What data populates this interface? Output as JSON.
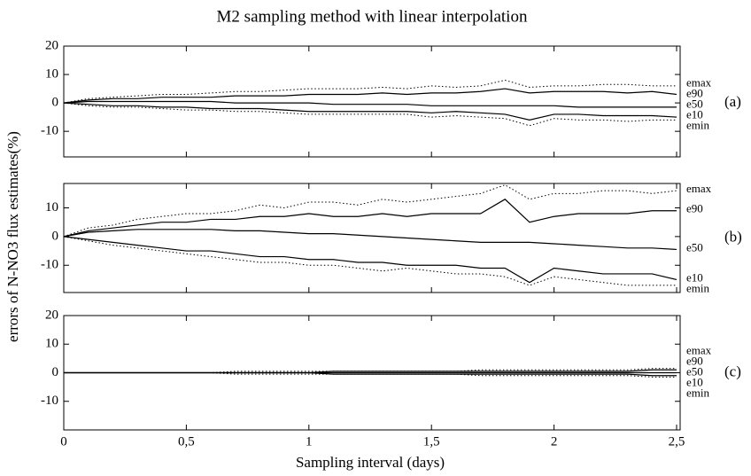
{
  "chart_data": [
    {
      "type": "line",
      "title": "M2 sampling method with linear interpolation",
      "label": "(a)",
      "x": [
        0,
        0.1,
        0.2,
        0.3,
        0.4,
        0.5,
        0.6,
        0.7,
        0.8,
        0.9,
        1,
        1.1,
        1.2,
        1.3,
        1.4,
        1.5,
        1.6,
        1.7,
        1.8,
        1.9,
        2,
        2.1,
        2.2,
        2.3,
        2.4,
        2.5
      ],
      "ylim": [
        -19,
        20
      ],
      "yticks": [
        -10,
        0,
        10,
        20
      ],
      "series": [
        {
          "name": "emax",
          "color": "#000000",
          "style": "dotted",
          "values": [
            0,
            1.5,
            2,
            2.5,
            3,
            3,
            3.5,
            4,
            4,
            4.5,
            5,
            5,
            5,
            5.5,
            5,
            6,
            5.5,
            6,
            8,
            5.5,
            6,
            6,
            6.5,
            6.5,
            6,
            6
          ]
        },
        {
          "name": "e90",
          "color": "#000000",
          "style": "solid",
          "values": [
            0,
            1,
            1.5,
            1.5,
            2,
            2,
            2,
            2.5,
            2.5,
            2.5,
            3,
            3,
            3,
            3.5,
            3,
            3.5,
            3.5,
            4,
            5,
            3.5,
            4,
            4,
            4,
            3.5,
            4,
            3
          ]
        },
        {
          "name": "e50",
          "color": "#000000",
          "style": "solid",
          "values": [
            0,
            0.5,
            0.5,
            0.5,
            0.5,
            0.5,
            0.5,
            0,
            0,
            0,
            0,
            -0.5,
            -0.5,
            -0.5,
            -0.5,
            -1,
            -1,
            -1,
            -1,
            -1,
            -1,
            -1.5,
            -1.5,
            -1.5,
            -1.5,
            -1.5
          ]
        },
        {
          "name": "e10",
          "color": "#000000",
          "style": "solid",
          "values": [
            0,
            -0.5,
            -1,
            -1,
            -1.5,
            -1.5,
            -2,
            -2,
            -2,
            -2.5,
            -3,
            -3,
            -3,
            -3,
            -3,
            -3.5,
            -3,
            -3.5,
            -4,
            -6,
            -4,
            -4,
            -4.5,
            -4.5,
            -4.5,
            -5
          ]
        },
        {
          "name": "emin",
          "color": "#000000",
          "style": "dotted",
          "values": [
            0,
            -1,
            -1.5,
            -1.5,
            -2,
            -2.5,
            -2.5,
            -3,
            -3,
            -3.5,
            -4,
            -4,
            -4,
            -4,
            -4,
            -5,
            -4.5,
            -5,
            -5.5,
            -8,
            -5.5,
            -6,
            -6,
            -6.5,
            -6,
            -6
          ]
        }
      ]
    },
    {
      "type": "line",
      "label": "(b)",
      "y_label": "errors of N-NO3 flux estimates(%)",
      "x": [
        0,
        0.1,
        0.2,
        0.3,
        0.4,
        0.5,
        0.6,
        0.7,
        0.8,
        0.9,
        1,
        1.1,
        1.2,
        1.3,
        1.4,
        1.5,
        1.6,
        1.7,
        1.8,
        1.9,
        2,
        2.1,
        2.2,
        2.3,
        2.4,
        2.5
      ],
      "ylim": [
        -19.5,
        18.5
      ],
      "yticks": [
        -10,
        0,
        10
      ],
      "series": [
        {
          "name": "emax",
          "color": "#000000",
          "style": "dotted",
          "values": [
            0,
            3,
            4,
            6,
            7,
            8,
            8,
            9,
            11,
            10,
            12,
            12,
            11,
            13,
            12,
            13,
            14,
            15,
            18,
            13,
            15,
            15,
            16,
            16,
            15,
            16
          ]
        },
        {
          "name": "e90",
          "color": "#000000",
          "style": "solid",
          "values": [
            0,
            2,
            3,
            4,
            5,
            5,
            6,
            6,
            7,
            7,
            8,
            7,
            7,
            8,
            7,
            8,
            8,
            8,
            13,
            5,
            7,
            8,
            8,
            8,
            9,
            9
          ]
        },
        {
          "name": "e50",
          "color": "#000000",
          "style": "solid",
          "values": [
            0,
            1.5,
            2,
            2.5,
            2.5,
            2.5,
            2.5,
            2,
            2,
            1.5,
            1,
            1,
            0.5,
            0,
            -0.5,
            -1,
            -1.5,
            -2,
            -2,
            -2,
            -2.5,
            -3,
            -3.5,
            -4,
            -4,
            -4.5
          ]
        },
        {
          "name": "e10",
          "color": "#000000",
          "style": "solid",
          "values": [
            0,
            -1,
            -2,
            -3,
            -4,
            -5,
            -5,
            -6,
            -7,
            -7,
            -8,
            -8,
            -9,
            -9,
            -10,
            -10,
            -10,
            -11,
            -11,
            -16,
            -11,
            -12,
            -13,
            -13,
            -13,
            -15
          ]
        },
        {
          "name": "emin",
          "color": "#000000",
          "style": "dotted",
          "values": [
            0,
            -1.5,
            -3,
            -4,
            -5,
            -6,
            -7,
            -8,
            -9,
            -9,
            -10,
            -10,
            -11,
            -12,
            -11,
            -12,
            -13,
            -13,
            -14,
            -17,
            -14,
            -15,
            -16,
            -17,
            -17,
            -17
          ]
        }
      ]
    },
    {
      "type": "line",
      "label": "(c)",
      "x_label": "Sampling interval (days)",
      "x": [
        0,
        0.1,
        0.2,
        0.3,
        0.4,
        0.5,
        0.6,
        0.7,
        0.8,
        0.9,
        1,
        1.1,
        1.2,
        1.3,
        1.4,
        1.5,
        1.6,
        1.7,
        1.8,
        1.9,
        2,
        2.1,
        2.2,
        2.3,
        2.4,
        2.5
      ],
      "xlim": [
        0,
        2.5
      ],
      "xticks": [
        0,
        {
          "value": 0.5,
          "label": "0,5"
        },
        1,
        {
          "value": 1.5,
          "label": "1,5"
        },
        2,
        {
          "value": 2.5,
          "label": "2,5"
        }
      ],
      "ylim": [
        -20,
        20
      ],
      "yticks": [
        -10,
        0,
        10,
        20
      ],
      "series": [
        {
          "name": "emax",
          "color": "#000000",
          "style": "dotted",
          "values": [
            0,
            0,
            0,
            0,
            0,
            0,
            0,
            0.5,
            0.5,
            0.5,
            0.5,
            0.5,
            0.5,
            0.5,
            0.5,
            0.5,
            0.5,
            1,
            1,
            1,
            1,
            1,
            1,
            1,
            1.5,
            1.5
          ]
        },
        {
          "name": "e90",
          "color": "#000000",
          "style": "solid",
          "values": [
            0,
            0,
            0,
            0,
            0,
            0,
            0,
            0,
            0,
            0,
            0,
            0.5,
            0.5,
            0.5,
            0.5,
            0.5,
            0.5,
            0.5,
            0.5,
            0.5,
            0.5,
            0.5,
            0.5,
            0.5,
            1,
            1
          ]
        },
        {
          "name": "e50",
          "color": "#000000",
          "style": "solid",
          "values": [
            0,
            0,
            0,
            0,
            0,
            0,
            0,
            0,
            0,
            0,
            0,
            0,
            0,
            0,
            0,
            0,
            0,
            0,
            0,
            0,
            0,
            0,
            0,
            0,
            0,
            0
          ]
        },
        {
          "name": "e10",
          "color": "#000000",
          "style": "solid",
          "values": [
            0,
            0,
            0,
            0,
            0,
            0,
            0,
            0,
            0,
            0,
            0,
            -0.5,
            -0.5,
            -0.5,
            -0.5,
            -0.5,
            -0.5,
            -0.5,
            -0.5,
            -0.5,
            -0.5,
            -0.5,
            -0.5,
            -0.5,
            -1,
            -1
          ]
        },
        {
          "name": "emin",
          "color": "#000000",
          "style": "dotted",
          "values": [
            0,
            0,
            0,
            0,
            0,
            0,
            0,
            -0.5,
            -0.5,
            -0.5,
            -0.5,
            -0.5,
            -0.5,
            -0.5,
            -0.5,
            -0.5,
            -0.5,
            -1,
            -1,
            -1,
            -1,
            -1,
            -1,
            -1,
            -1.5,
            -1.5
          ]
        }
      ]
    }
  ]
}
